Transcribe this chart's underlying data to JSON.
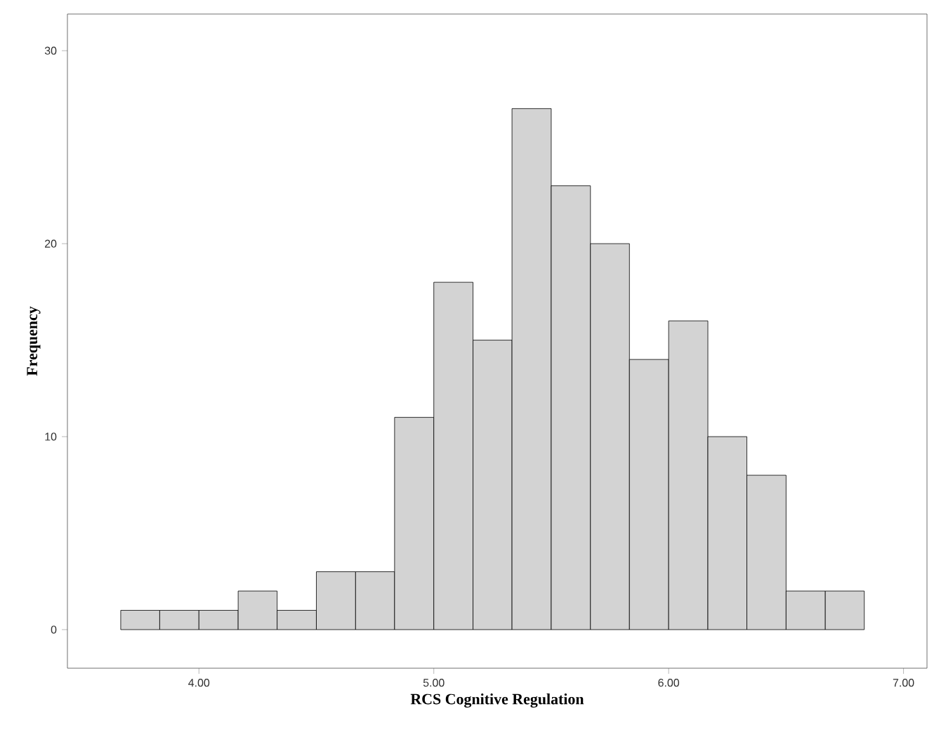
{
  "chart_data": {
    "type": "histogram",
    "xlabel": "RCS Cognitive Regulation",
    "ylabel": "Frequency",
    "bins": [
      3.667,
      3.833,
      4.0,
      4.167,
      4.333,
      4.5,
      4.667,
      4.833,
      5.0,
      5.167,
      5.333,
      5.5,
      5.667,
      5.833,
      6.0,
      6.167,
      6.333,
      6.5,
      6.667,
      6.833
    ],
    "values": [
      1,
      1,
      1,
      2,
      1,
      3,
      3,
      11,
      18,
      15,
      27,
      23,
      20,
      14,
      16,
      10,
      8,
      2,
      2
    ],
    "color": "#d3d3d3",
    "xlim": [
      3.44,
      7.1
    ],
    "ylim": [
      -2,
      31.9
    ],
    "xticks": [
      {
        "value": 4,
        "label": "4.00"
      },
      {
        "value": 5,
        "label": "5.00"
      },
      {
        "value": 6,
        "label": "6.00"
      },
      {
        "value": 7,
        "label": "7.00"
      }
    ],
    "yticks": [
      0,
      10,
      20,
      30
    ]
  }
}
